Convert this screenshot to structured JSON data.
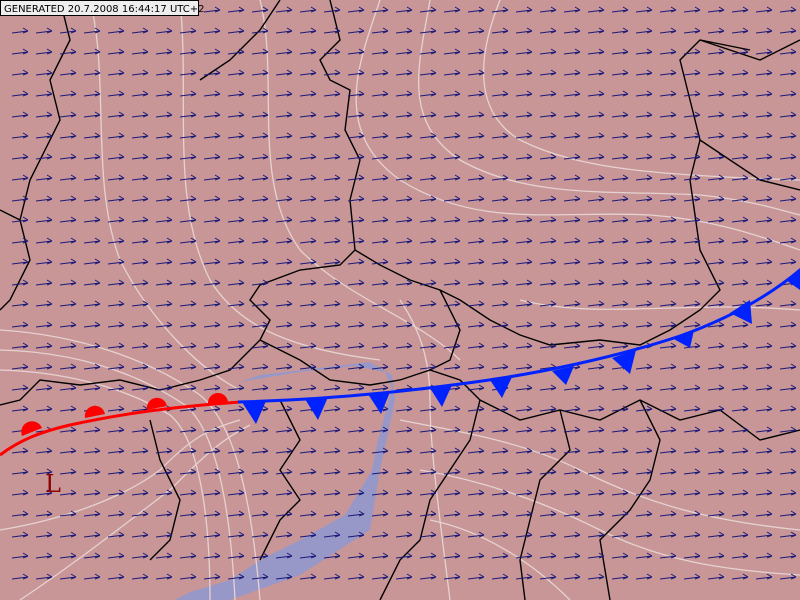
{
  "header": {
    "generated": "GENERATED 20.7.2008 16:44:17 UTC+2"
  },
  "labels": {
    "low": "L"
  }
}
